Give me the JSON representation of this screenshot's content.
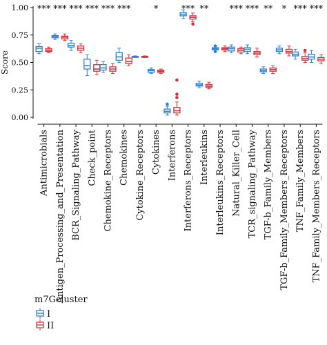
{
  "chart_data": {
    "type": "box",
    "ylabel": "Score",
    "ylim": [
      0,
      1.05
    ],
    "yticks": [
      "0.00",
      "0.25",
      "0.50",
      "0.75",
      "1.00"
    ],
    "legend": {
      "title": "m7Gcluster",
      "placement": "bottom-left"
    },
    "series": [
      {
        "name": "I",
        "color": "#2f7fd1"
      },
      {
        "name": "II",
        "color": "#d6323a"
      }
    ],
    "categories": [
      {
        "label": "Antimicrobials",
        "sig": "***",
        "I": {
          "whislo": 0.58,
          "q1": 0.6,
          "med": 0.63,
          "q3": 0.645,
          "whishi": 0.67,
          "fliers": []
        },
        "II": {
          "whislo": 0.59,
          "q1": 0.6,
          "med": 0.61,
          "q3": 0.625,
          "whishi": 0.64,
          "fliers": []
        }
      },
      {
        "label": "Antigen_Processing_and_Presentation",
        "sig": "***",
        "I": {
          "whislo": 0.71,
          "q1": 0.725,
          "med": 0.735,
          "q3": 0.745,
          "whishi": 0.76,
          "fliers": []
        },
        "II": {
          "whislo": 0.7,
          "q1": 0.715,
          "med": 0.73,
          "q3": 0.74,
          "whishi": 0.76,
          "fliers": []
        }
      },
      {
        "label": "BCR_Signaling_Pathway",
        "sig": "***",
        "I": {
          "whislo": 0.61,
          "q1": 0.64,
          "med": 0.655,
          "q3": 0.675,
          "whishi": 0.7,
          "fliers": []
        },
        "II": {
          "whislo": 0.59,
          "q1": 0.61,
          "med": 0.63,
          "q3": 0.65,
          "whishi": 0.67,
          "fliers": []
        }
      },
      {
        "label": "Check_point",
        "sig": "***",
        "I": {
          "whislo": 0.38,
          "q1": 0.44,
          "med": 0.47,
          "q3": 0.53,
          "whishi": 0.57,
          "fliers": []
        },
        "II": {
          "whislo": 0.39,
          "q1": 0.42,
          "med": 0.44,
          "q3": 0.48,
          "whishi": 0.52,
          "fliers": []
        }
      },
      {
        "label": "Chemokine_Receptors",
        "sig": "***",
        "I": {
          "whislo": 0.41,
          "q1": 0.43,
          "med": 0.45,
          "q3": 0.48,
          "whishi": 0.51,
          "fliers": []
        },
        "II": {
          "whislo": 0.4,
          "q1": 0.42,
          "med": 0.44,
          "q3": 0.46,
          "whishi": 0.49,
          "fliers": []
        }
      },
      {
        "label": "Chemokines",
        "sig": "***",
        "I": {
          "whislo": 0.5,
          "q1": 0.52,
          "med": 0.55,
          "q3": 0.59,
          "whishi": 0.63,
          "fliers": []
        },
        "II": {
          "whislo": 0.47,
          "q1": 0.49,
          "med": 0.51,
          "q3": 0.54,
          "whishi": 0.57,
          "fliers": []
        }
      },
      {
        "label": "Cytokine_Receptors",
        "sig": "",
        "I": {
          "whislo": 0.545,
          "q1": 0.55,
          "med": 0.553,
          "q3": 0.556,
          "whishi": 0.56,
          "fliers": []
        },
        "II": {
          "whislo": 0.545,
          "q1": 0.55,
          "med": 0.553,
          "q3": 0.556,
          "whishi": 0.56,
          "fliers": []
        }
      },
      {
        "label": "Cytokines",
        "sig": "*",
        "I": {
          "whislo": 0.4,
          "q1": 0.41,
          "med": 0.425,
          "q3": 0.435,
          "whishi": 0.45,
          "fliers": []
        },
        "II": {
          "whislo": 0.4,
          "q1": 0.41,
          "med": 0.42,
          "q3": 0.43,
          "whishi": 0.44,
          "fliers": []
        }
      },
      {
        "label": "Interferons",
        "sig": "",
        "I": {
          "whislo": 0.02,
          "q1": 0.04,
          "med": 0.055,
          "q3": 0.075,
          "whishi": 0.1,
          "fliers": [
            0.12
          ]
        },
        "II": {
          "whislo": 0.02,
          "q1": 0.04,
          "med": 0.06,
          "q3": 0.09,
          "whishi": 0.14,
          "fliers": [
            0.18,
            0.21,
            0.34
          ]
        }
      },
      {
        "label": "Interferons_Receptors",
        "sig": "***",
        "I": {
          "whislo": 0.9,
          "q1": 0.925,
          "med": 0.94,
          "q3": 0.955,
          "whishi": 0.98,
          "fliers": []
        },
        "II": {
          "whislo": 0.87,
          "q1": 0.895,
          "med": 0.91,
          "q3": 0.925,
          "whishi": 0.95,
          "fliers": [
            0.85
          ]
        }
      },
      {
        "label": "Interleukins",
        "sig": "**",
        "I": {
          "whislo": 0.27,
          "q1": 0.285,
          "med": 0.295,
          "q3": 0.31,
          "whishi": 0.33,
          "fliers": []
        },
        "II": {
          "whislo": 0.26,
          "q1": 0.275,
          "med": 0.285,
          "q3": 0.3,
          "whishi": 0.32,
          "fliers": []
        }
      },
      {
        "label": "Interleukins_Receptors",
        "sig": "",
        "I": {
          "whislo": 0.595,
          "q1": 0.615,
          "med": 0.625,
          "q3": 0.635,
          "whishi": 0.655,
          "fliers": [
            0.6,
            0.65
          ]
        },
        "II": {
          "whislo": 0.6,
          "q1": 0.615,
          "med": 0.625,
          "q3": 0.635,
          "whishi": 0.65,
          "fliers": []
        }
      },
      {
        "label": "Natural_Killer_Cell",
        "sig": "***",
        "I": {
          "whislo": 0.59,
          "q1": 0.605,
          "med": 0.625,
          "q3": 0.64,
          "whishi": 0.66,
          "fliers": []
        },
        "II": {
          "whislo": 0.58,
          "q1": 0.595,
          "med": 0.61,
          "q3": 0.625,
          "whishi": 0.64,
          "fliers": []
        }
      },
      {
        "label": "TCR_signaling_Pathway",
        "sig": "***",
        "I": {
          "whislo": 0.58,
          "q1": 0.6,
          "med": 0.62,
          "q3": 0.635,
          "whishi": 0.66,
          "fliers": []
        },
        "II": {
          "whislo": 0.55,
          "q1": 0.57,
          "med": 0.585,
          "q3": 0.6,
          "whishi": 0.63,
          "fliers": []
        }
      },
      {
        "label": "TGF-b_Family_Members",
        "sig": "**",
        "I": {
          "whislo": 0.4,
          "q1": 0.415,
          "med": 0.425,
          "q3": 0.44,
          "whishi": 0.46,
          "fliers": []
        },
        "II": {
          "whislo": 0.4,
          "q1": 0.42,
          "med": 0.435,
          "q3": 0.45,
          "whishi": 0.47,
          "fliers": []
        }
      },
      {
        "label": "TGF-b_Family_Members_Receptors",
        "sig": "*",
        "I": {
          "whislo": 0.58,
          "q1": 0.6,
          "med": 0.615,
          "q3": 0.63,
          "whishi": 0.65,
          "fliers": []
        },
        "II": {
          "whislo": 0.56,
          "q1": 0.585,
          "med": 0.6,
          "q3": 0.62,
          "whishi": 0.65,
          "fliers": []
        }
      },
      {
        "label": "TNF_Family_Members",
        "sig": "***",
        "I": {
          "whislo": 0.53,
          "q1": 0.56,
          "med": 0.575,
          "q3": 0.595,
          "whishi": 0.62,
          "fliers": []
        },
        "II": {
          "whislo": 0.5,
          "q1": 0.52,
          "med": 0.535,
          "q3": 0.555,
          "whishi": 0.59,
          "fliers": [
            0.61
          ]
        }
      },
      {
        "label": "TNF_Family_Members_Receptors",
        "sig": "***",
        "I": {
          "whislo": 0.5,
          "q1": 0.53,
          "med": 0.55,
          "q3": 0.575,
          "whishi": 0.61,
          "fliers": []
        },
        "II": {
          "whislo": 0.49,
          "q1": 0.515,
          "med": 0.53,
          "q3": 0.545,
          "whishi": 0.57,
          "fliers": []
        }
      }
    ]
  }
}
